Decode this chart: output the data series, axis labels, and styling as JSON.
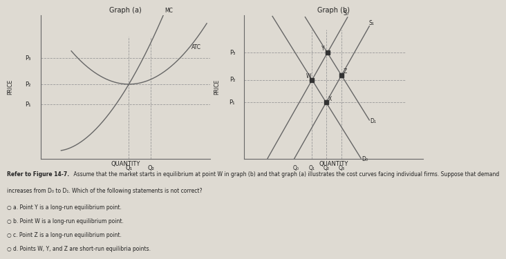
{
  "bg_color": "#dedad2",
  "graph_a_title": "Graph (a)",
  "graph_b_title": "Graph (b)",
  "graph_a_xlabel": "QUANTITY",
  "graph_a_ylabel": "PRICE",
  "graph_b_xlabel": "QUANTITY",
  "graph_b_ylabel": "PRICE",
  "graph_a_price_labels": [
    "P₃",
    "P₂",
    "P₁"
  ],
  "graph_a_qty_labels": [
    "Q₁",
    "Q₂"
  ],
  "graph_b_price_labels": [
    "P₃",
    "P₂",
    "P₁"
  ],
  "graph_b_qty_labels": [
    "Q₀",
    "Q₁",
    "Q₂",
    "Q₃"
  ],
  "graph_b_supply_labels": [
    "S₀",
    "S₁"
  ],
  "graph_b_demand_labels": [
    "D₀",
    "D₁"
  ],
  "line_color": "#666666",
  "dot_color": "#333333",
  "dashed_color": "#999999",
  "text_color": "#222222",
  "question_bold": "Refer to Figure 14-7.",
  "question_text": " Assume that the market starts in equilibrium at point W in graph (b) and that graph (a) illustrates the cost curves facing individual firms. Suppose that demand increases from D₀ to D₁. Which of the following statements is not correct?",
  "answer_a": "a. Point Y is a long-run equilibrium point.",
  "answer_b": "b. Point W is a long-run equilibrium point.",
  "answer_c": "c. Point Z is a long-run equilibrium point.",
  "answer_d": "d. Points W, Y, and Z are short-run equilibria points."
}
